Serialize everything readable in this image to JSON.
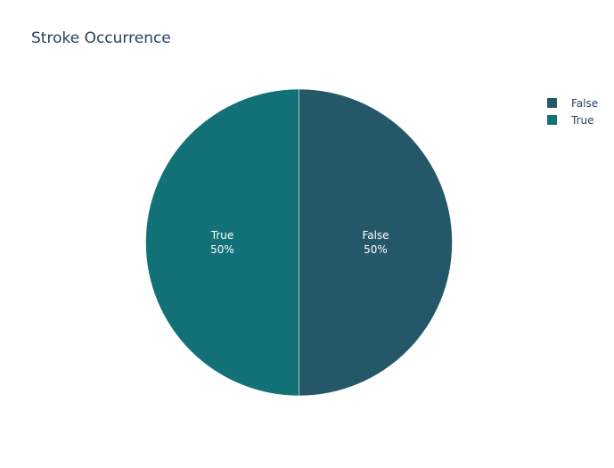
{
  "chart_data": {
    "type": "pie",
    "title": "Stroke Occurrence",
    "categories": [
      "False",
      "True"
    ],
    "values": [
      50,
      50
    ],
    "percent_labels": [
      "50%",
      "50%"
    ],
    "colors": [
      "#245868",
      "#127177"
    ],
    "legend": {
      "placement": "top-right",
      "entries": [
        "False",
        "True"
      ]
    },
    "sort": "clockwise-from-top"
  }
}
